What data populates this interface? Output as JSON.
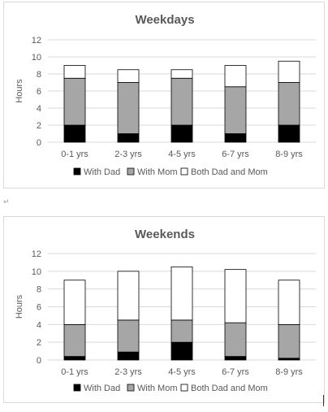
{
  "page": {
    "paragraph_mark": "↵"
  },
  "chart_data": [
    {
      "type": "bar",
      "stacked": true,
      "title": "Weekdays",
      "xlabel": "",
      "ylabel": "Hours",
      "ylim": [
        0,
        12
      ],
      "yticks": [
        0,
        2,
        4,
        6,
        8,
        10,
        12
      ],
      "grid": true,
      "legend_position": "bottom",
      "categories": [
        "0-1 yrs",
        "2-3 yrs",
        "4-5 yrs",
        "6-7 yrs",
        "8-9 yrs"
      ],
      "series": [
        {
          "name": "With Dad",
          "values": [
            2,
            1,
            2,
            1,
            2
          ],
          "color": "#000000"
        },
        {
          "name": "With Mom",
          "values": [
            5.5,
            6,
            5.5,
            5.5,
            5
          ],
          "color": "#a6a6a6"
        },
        {
          "name": "Both Dad and Mom",
          "values": [
            1.5,
            1.5,
            1,
            2.5,
            2.5
          ],
          "color": "#ffffff"
        }
      ]
    },
    {
      "type": "bar",
      "stacked": true,
      "title": "Weekends",
      "xlabel": "",
      "ylabel": "Hours",
      "ylim": [
        0,
        12
      ],
      "yticks": [
        0,
        2,
        4,
        6,
        8,
        10,
        12
      ],
      "grid": true,
      "legend_position": "bottom",
      "categories": [
        "0-1 yrs",
        "2-3 yrs",
        "4-5 yrs",
        "6-7 yrs",
        "8-9 yrs"
      ],
      "series": [
        {
          "name": "With Dad",
          "values": [
            0.4,
            0.9,
            2,
            0.4,
            0.2
          ],
          "color": "#000000"
        },
        {
          "name": "With Mom",
          "values": [
            3.6,
            3.6,
            2.5,
            3.8,
            3.8
          ],
          "color": "#a6a6a6"
        },
        {
          "name": "Both Dad and Mom",
          "values": [
            5,
            5.5,
            6,
            6,
            5
          ],
          "color": "#ffffff"
        }
      ]
    }
  ]
}
